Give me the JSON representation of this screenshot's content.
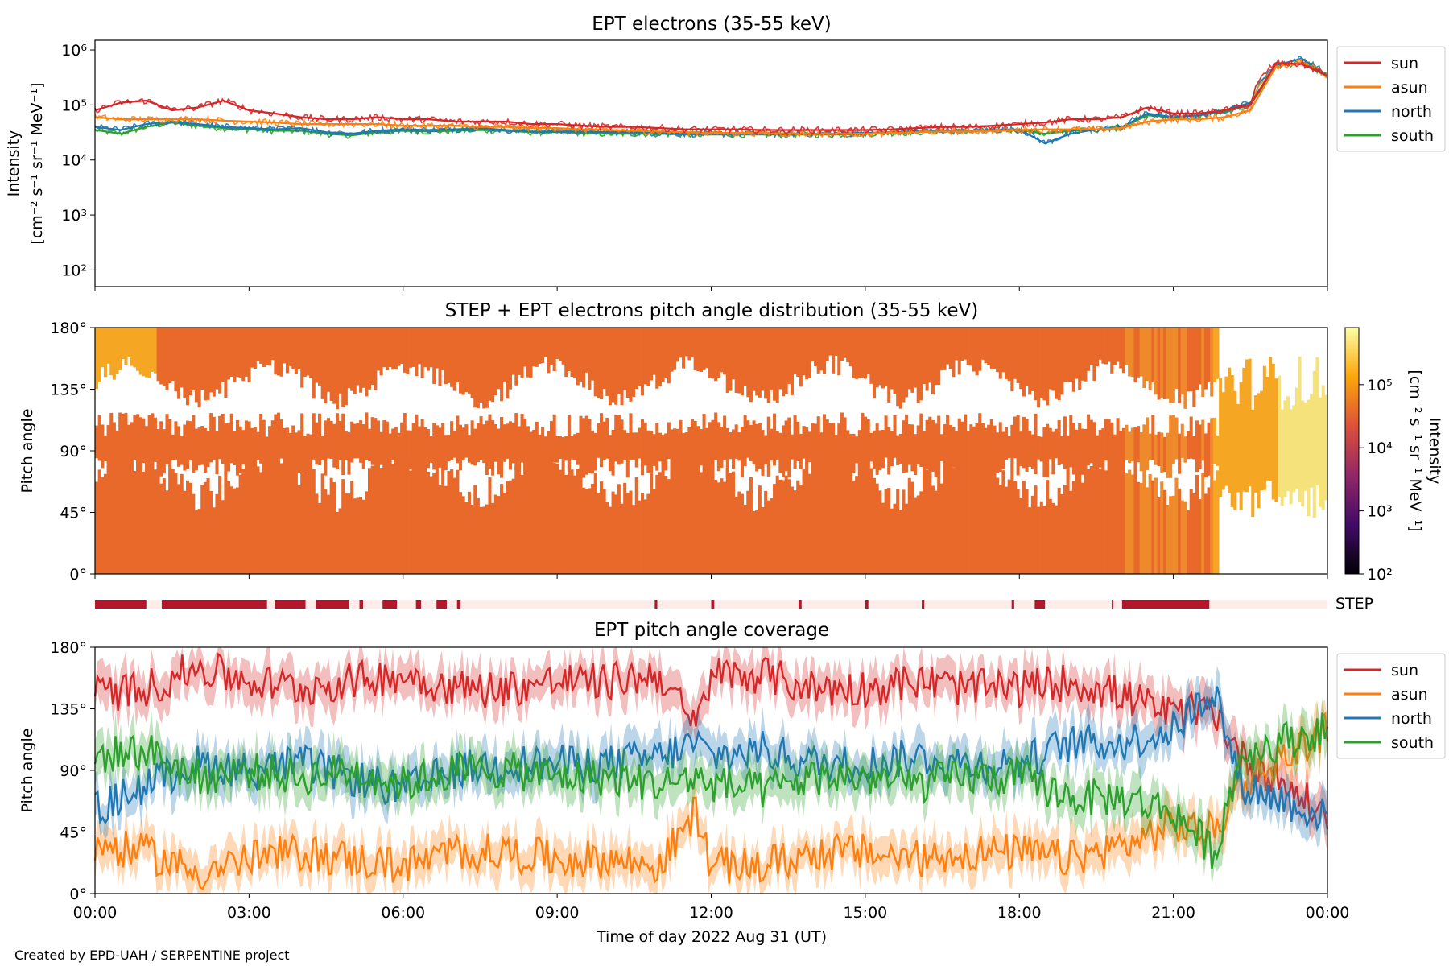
{
  "footer": "Created by EPD-UAH / SERPENTINE project",
  "colors": {
    "sun": "#d62728",
    "asun": "#ff7f0e",
    "north": "#1f77b4",
    "south": "#2ca02c",
    "pad_main": "#e8692a",
    "pad_late": "#f5a623",
    "pad_high": "#f6e27a",
    "step_on": "#b2182b",
    "step_off": "#fdece8"
  },
  "x_axis": {
    "label": "Time of day 2022 Aug 31 (UT)",
    "range_hours": [
      0,
      24
    ],
    "ticks": [
      "00:00",
      "03:00",
      "06:00",
      "09:00",
      "12:00",
      "15:00",
      "18:00",
      "21:00",
      "00:00"
    ],
    "tick_hours": [
      0,
      3,
      6,
      9,
      12,
      15,
      18,
      21,
      24
    ]
  },
  "panels": {
    "intensity": {
      "title": "EPT electrons (35-55 keV)",
      "ylabel_1": "Intensity",
      "ylabel_2": "[cm⁻² s⁻¹ sr⁻¹ MeV⁻¹]",
      "legend": [
        "sun",
        "asun",
        "north",
        "south"
      ]
    },
    "pad": {
      "title": "STEP + EPT electrons pitch angle distribution (35-55 keV)",
      "ylabel": "Pitch angle",
      "cbar_label_1": "Intensity",
      "cbar_label_2": "[cm⁻² s⁻¹ sr⁻¹ MeV⁻¹]",
      "cbar_ticks": [
        "10²",
        "10³",
        "10⁴",
        "10⁵"
      ]
    },
    "step": {
      "label": "STEP"
    },
    "coverage": {
      "title": "EPT pitch angle coverage",
      "ylabel": "Pitch angle",
      "legend": [
        "sun",
        "asun",
        "north",
        "south"
      ]
    }
  },
  "chart_data": [
    {
      "type": "line",
      "title": "EPT electrons (35-55 keV)",
      "xlabel": "",
      "ylabel": "Intensity [cm⁻² s⁻¹ sr⁻¹ MeV⁻¹]",
      "y_scale": "log",
      "ylim": [
        50,
        1500000
      ],
      "y_ticks": [
        "10²",
        "10³",
        "10⁴",
        "10⁵",
        "10⁶"
      ],
      "y_tick_values": [
        100,
        1000,
        10000,
        100000,
        1000000
      ],
      "x_hours": [
        0,
        0.5,
        1,
        1.5,
        2,
        2.5,
        3,
        3.5,
        4,
        4.5,
        5,
        5.5,
        6,
        6.5,
        7,
        7.5,
        8,
        8.5,
        9,
        9.5,
        10,
        10.5,
        11,
        11.5,
        12,
        12.5,
        13,
        13.5,
        14,
        14.5,
        15,
        15.5,
        16,
        16.5,
        17,
        17.5,
        18,
        18.5,
        19,
        19.5,
        20,
        20.5,
        21,
        21.5,
        22,
        22.5,
        23,
        23.5,
        24
      ],
      "series": [
        {
          "name": "sun",
          "values": [
            80000,
            110000,
            120000,
            80000,
            90000,
            120000,
            80000,
            70000,
            60000,
            55000,
            55000,
            60000,
            55000,
            55000,
            50000,
            50000,
            50000,
            45000,
            45000,
            42000,
            40000,
            40000,
            38000,
            36000,
            36000,
            36000,
            35000,
            35000,
            35000,
            35000,
            35000,
            36000,
            38000,
            40000,
            40000,
            42000,
            45000,
            48000,
            55000,
            55000,
            60000,
            90000,
            70000,
            70000,
            80000,
            100000,
            580000,
            550000,
            340000
          ]
        },
        {
          "name": "asun",
          "values": [
            60000,
            55000,
            55000,
            55000,
            55000,
            52000,
            50000,
            48000,
            45000,
            45000,
            45000,
            45000,
            42000,
            42000,
            42000,
            40000,
            40000,
            38000,
            38000,
            36000,
            35000,
            34000,
            33000,
            32000,
            31000,
            31000,
            31000,
            30000,
            30000,
            30000,
            30000,
            31000,
            32000,
            33000,
            33000,
            34000,
            35000,
            36000,
            36000,
            36000,
            38000,
            50000,
            55000,
            55000,
            60000,
            80000,
            500000,
            600000,
            320000
          ]
        },
        {
          "name": "north",
          "values": [
            40000,
            35000,
            45000,
            50000,
            45000,
            40000,
            38000,
            36000,
            38000,
            32000,
            30000,
            34000,
            36000,
            35000,
            36000,
            38000,
            35000,
            33000,
            33000,
            33000,
            32000,
            32000,
            31000,
            30000,
            30000,
            30000,
            30000,
            30000,
            30000,
            30000,
            31000,
            32000,
            33000,
            34000,
            34000,
            35000,
            36000,
            20000,
            30000,
            36000,
            40000,
            70000,
            60000,
            65000,
            80000,
            110000,
            520000,
            700000,
            330000
          ]
        },
        {
          "name": "south",
          "values": [
            35000,
            30000,
            40000,
            48000,
            42000,
            38000,
            36000,
            34000,
            34000,
            30000,
            28000,
            32000,
            34000,
            33000,
            34000,
            35000,
            34000,
            32000,
            32000,
            31000,
            30000,
            30000,
            30000,
            29000,
            29000,
            29000,
            29000,
            29000,
            29000,
            29000,
            30000,
            31000,
            32000,
            33000,
            33000,
            34000,
            35000,
            30000,
            34000,
            36000,
            40000,
            65000,
            60000,
            65000,
            75000,
            100000,
            500000,
            600000,
            330000
          ]
        }
      ]
    },
    {
      "type": "heatmap",
      "title": "STEP + EPT electrons pitch angle distribution (35-55 keV)",
      "xlabel": "",
      "ylabel": "Pitch angle",
      "ylim": [
        0,
        180
      ],
      "y_ticks": [
        "0°",
        "45°",
        "90°",
        "135°",
        "180°"
      ],
      "y_tick_values": [
        0,
        45,
        90,
        135,
        180
      ],
      "colorbar": {
        "label": "Intensity [cm⁻² s⁻¹ sr⁻¹ MeV⁻¹]",
        "scale": "log",
        "range": [
          100,
          800000
        ],
        "colormap": "inferno"
      },
      "intensity_hours": [
        0,
        3,
        6,
        9,
        12,
        15,
        18,
        20,
        21.5,
        22,
        22.7,
        23.2,
        24
      ],
      "intensity_values": [
        50000,
        45000,
        40000,
        38000,
        35000,
        33000,
        36000,
        45000,
        60000,
        80000,
        200000,
        550000,
        350000
      ]
    },
    {
      "type": "bar",
      "title": "",
      "xlabel": "",
      "ylabel": "",
      "label": "STEP",
      "active_intervals_hours": [
        [
          0,
          1.0
        ],
        [
          1.3,
          3.35
        ],
        [
          3.5,
          4.1
        ],
        [
          4.3,
          4.95
        ],
        [
          5.15,
          5.22
        ],
        [
          5.6,
          5.88
        ],
        [
          6.25,
          6.35
        ],
        [
          6.65,
          6.85
        ],
        [
          7.05,
          7.12
        ],
        [
          10.9,
          10.95
        ],
        [
          12.0,
          12.06
        ],
        [
          13.7,
          13.76
        ],
        [
          15.0,
          15.06
        ],
        [
          16.1,
          16.15
        ],
        [
          17.85,
          17.9
        ],
        [
          18.3,
          18.5
        ],
        [
          19.8,
          19.83
        ],
        [
          20.0,
          21.7
        ]
      ]
    },
    {
      "type": "line",
      "title": "EPT pitch angle coverage",
      "xlabel": "Time of day 2022 Aug 31 (UT)",
      "ylabel": "Pitch angle",
      "ylim": [
        0,
        180
      ],
      "y_ticks": [
        "0°",
        "45°",
        "90°",
        "135°",
        "180°"
      ],
      "y_tick_values": [
        0,
        45,
        90,
        135,
        180
      ],
      "x_hours": [
        0,
        1,
        2,
        3,
        4,
        5,
        6,
        7,
        8,
        9,
        10,
        11,
        11.7,
        12,
        13,
        14,
        15,
        16,
        17,
        18,
        19,
        20,
        21,
        21.8,
        22.3,
        23,
        24
      ],
      "series": [
        {
          "name": "sun",
          "values": [
            145,
            150,
            165,
            155,
            150,
            155,
            160,
            150,
            150,
            155,
            155,
            160,
            120,
            160,
            160,
            150,
            150,
            155,
            150,
            150,
            155,
            145,
            130,
            135,
            100,
            85,
            55
          ]
        },
        {
          "name": "asun",
          "values": [
            35,
            30,
            15,
            25,
            30,
            25,
            20,
            30,
            30,
            25,
            25,
            20,
            60,
            20,
            20,
            30,
            30,
            25,
            30,
            30,
            25,
            35,
            50,
            45,
            80,
            95,
            120
          ]
        },
        {
          "name": "north",
          "values": [
            60,
            80,
            95,
            90,
            95,
            85,
            75,
            90,
            95,
            95,
            95,
            100,
            110,
            100,
            105,
            95,
            95,
            100,
            95,
            95,
            110,
            110,
            120,
            150,
            80,
            70,
            55
          ]
        },
        {
          "name": "south",
          "values": [
            100,
            105,
            85,
            90,
            85,
            90,
            80,
            90,
            90,
            85,
            85,
            80,
            85,
            80,
            75,
            85,
            85,
            80,
            85,
            85,
            70,
            70,
            60,
            30,
            100,
            110,
            120
          ]
        }
      ]
    }
  ]
}
